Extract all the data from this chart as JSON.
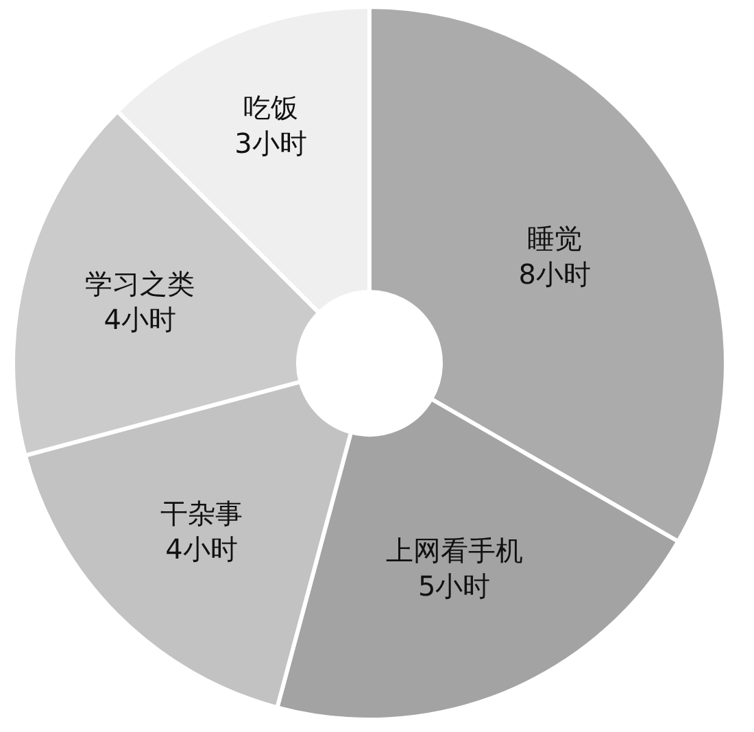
{
  "chart_data": {
    "type": "donut",
    "categories": [
      "睡觉",
      "上网看手机",
      "干杂事",
      "学习之类",
      "吃饭"
    ],
    "values": [
      8,
      5,
      4,
      4,
      3
    ],
    "value_labels": [
      "8小时",
      "5小时",
      "4小时",
      "4小时",
      "3小时"
    ],
    "colors": [
      "#ababab",
      "#a3a3a3",
      "#c2c2c2",
      "#cbcbcb",
      "#efefef"
    ]
  }
}
